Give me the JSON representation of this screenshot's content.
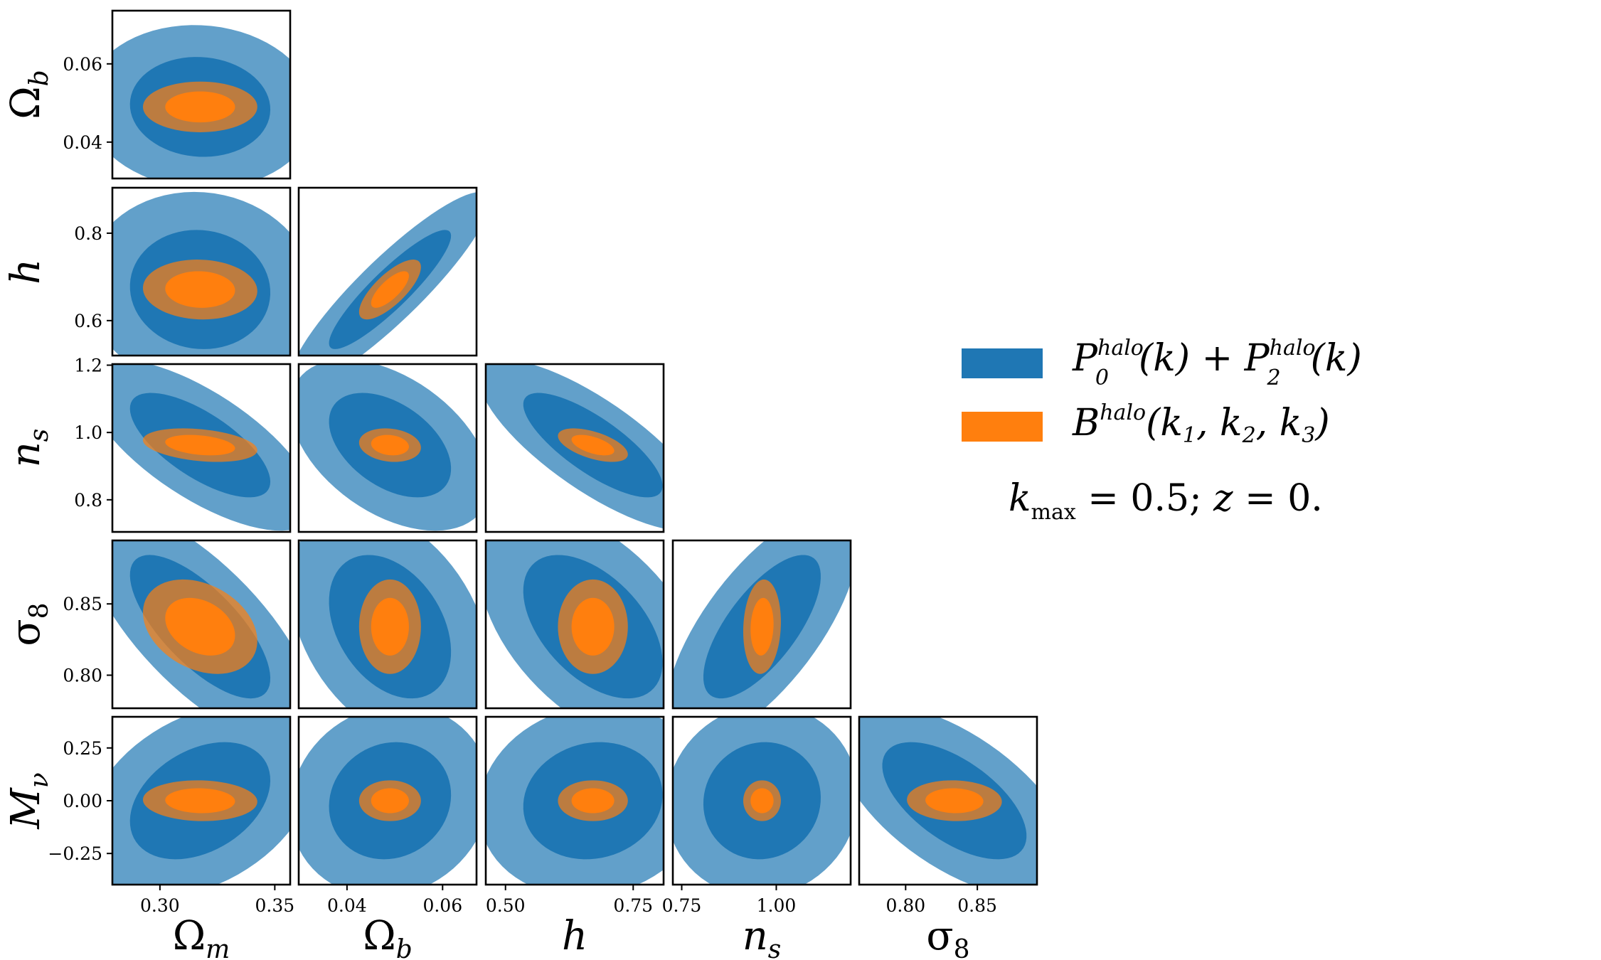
{
  "chart_data": {
    "type": "corner-plot",
    "title": "",
    "parameters": [
      {
        "key": "Om",
        "label": "Ωm",
        "base": "Ω",
        "sub": "m",
        "center": 0.3175,
        "ticks": [
          {
            "v": 0.3,
            "t": "0.30"
          },
          {
            "v": 0.35,
            "t": "0.35"
          }
        ]
      },
      {
        "key": "Ob",
        "label": "Ωb",
        "base": "Ω",
        "sub": "b",
        "center": 0.049,
        "ticks": [
          {
            "v": 0.04,
            "t": "0.04"
          },
          {
            "v": 0.06,
            "t": "0.06"
          }
        ]
      },
      {
        "key": "h",
        "label": "h",
        "base": "h",
        "sub": "",
        "center": 0.6711,
        "ticks": [
          {
            "v": 0.5,
            "t": "0.50"
          },
          {
            "v": 0.75,
            "t": "0.75"
          }
        ]
      },
      {
        "key": "ns",
        "label": "ns",
        "base": "n",
        "sub": "s",
        "center": 0.9624,
        "ticks": [
          {
            "v": 0.75,
            "t": "0.75"
          },
          {
            "v": 1.0,
            "t": "1.00"
          }
        ]
      },
      {
        "key": "s8",
        "label": "σ8",
        "base": "σ",
        "sub": "8",
        "center": 0.834,
        "ticks": [
          {
            "v": 0.8,
            "t": "0.80"
          },
          {
            "v": 0.85,
            "t": "0.85"
          }
        ]
      },
      {
        "key": "Mnu",
        "label": "Mν",
        "base": "M",
        "sub": "ν",
        "center": 0.0,
        "ticks": [
          {
            "v": -0.25,
            "t": "−0.25"
          },
          {
            "v": 0.0,
            "t": "0.00"
          },
          {
            "v": 0.25,
            "t": "0.25"
          }
        ]
      }
    ],
    "y_ticks": {
      "Ob": [
        {
          "v": 0.04,
          "t": "0.04"
        },
        {
          "v": 0.06,
          "t": "0.06"
        }
      ],
      "h": [
        {
          "v": 0.6,
          "t": "0.6"
        },
        {
          "v": 0.8,
          "t": "0.8"
        }
      ],
      "ns": [
        {
          "v": 0.8,
          "t": "0.8"
        },
        {
          "v": 1.0,
          "t": "1.0"
        },
        {
          "v": 1.2,
          "t": "1.2"
        }
      ],
      "s8": [
        {
          "v": 0.8,
          "t": "0.80"
        },
        {
          "v": 0.85,
          "t": "0.85"
        }
      ],
      "Mnu": [
        {
          "v": -0.25,
          "t": "−0.25"
        },
        {
          "v": 0.0,
          "t": "0.00"
        },
        {
          "v": 0.25,
          "t": "0.25"
        }
      ]
    },
    "axis_ranges": {
      "Om": [
        0.2793,
        0.3567
      ],
      "Ob": [
        0.0299,
        0.0671
      ],
      "h": [
        0.4614,
        0.8095
      ],
      "ns": [
        0.7265,
        1.1966
      ],
      "s8": [
        0.7676,
        0.8916
      ],
      "Mnu": [
        -0.3945,
        0.4011
      ]
    },
    "y_axis_ranges": {
      "Ob": [
        0.0307,
        0.0736
      ],
      "h": [
        0.52,
        0.904
      ],
      "ns": [
        0.7046,
        1.2032
      ],
      "s8": [
        0.7768,
        0.8945
      ],
      "Mnu": [
        -0.3976,
        0.3976
      ]
    },
    "series": [
      {
        "name": "P0halo(k) + P2halo(k)",
        "color": "#1f77b4",
        "sigma": {
          "Om": 0.0201,
          "Ob": 0.0084,
          "h": 0.0897,
          "ns": 0.1021,
          "s8": 0.0331,
          "Mnu": 0.1826
        }
      },
      {
        "name": "Bhalo(k1, k2, k3)",
        "color": "#ff7f0e",
        "sigma": {
          "Om": 0.01,
          "Ob": 0.0026,
          "h": 0.0275,
          "ns": 0.02,
          "s8": 0.0133,
          "Mnu": 0.0388
        }
      }
    ],
    "panels": [
      {
        "x": "Om",
        "y": "Ob",
        "rho_fisher_P": -0.05,
        "rho_fisher_B": 0.0
      },
      {
        "x": "Om",
        "y": "h",
        "rho_fisher_P": -0.05,
        "rho_fisher_B": -0.05
      },
      {
        "x": "Ob",
        "y": "h",
        "rho_fisher_P": 0.9,
        "rho_fisher_B": 0.75
      },
      {
        "x": "Om",
        "y": "ns",
        "rho_fisher_P": -0.7,
        "rho_fisher_B": -0.3
      },
      {
        "x": "Ob",
        "y": "ns",
        "rho_fisher_P": -0.45,
        "rho_fisher_B": -0.15
      },
      {
        "x": "h",
        "y": "ns",
        "rho_fisher_P": -0.78,
        "rho_fisher_B": -0.55
      },
      {
        "x": "Om",
        "y": "s8",
        "rho_fisher_P": -0.72,
        "rho_fisher_B": -0.3
      },
      {
        "x": "Ob",
        "y": "s8",
        "rho_fisher_P": -0.35,
        "rho_fisher_B": 0.0
      },
      {
        "x": "h",
        "y": "s8",
        "rho_fisher_P": -0.5,
        "rho_fisher_B": 0.0
      },
      {
        "x": "ns",
        "y": "s8",
        "rho_fisher_P": 0.7,
        "rho_fisher_B": 0.1
      },
      {
        "x": "Om",
        "y": "Mnu",
        "rho_fisher_P": 0.35,
        "rho_fisher_B": -0.05
      },
      {
        "x": "Ob",
        "y": "Mnu",
        "rho_fisher_P": 0.1,
        "rho_fisher_B": 0.0
      },
      {
        "x": "h",
        "y": "Mnu",
        "rho_fisher_P": 0.1,
        "rho_fisher_B": 0.0
      },
      {
        "x": "ns",
        "y": "Mnu",
        "rho_fisher_P": 0.05,
        "rho_fisher_B": 0.0
      },
      {
        "x": "s8",
        "y": "Mnu",
        "rho_fisher_P": -0.6,
        "rho_fisher_B": -0.05
      }
    ],
    "contour_levels": [
      "1-sigma (dark)",
      "2-sigma (light)"
    ],
    "legend": {
      "placement": "right",
      "entries": [
        {
          "color": "#1f77b4",
          "text": "P0halo(k) + P2halo(k)"
        },
        {
          "color": "#ff7f0e",
          "text": "Bhalo(k1, k2, k3)"
        }
      ],
      "note": "kmax = 0.5; z = 0."
    },
    "xlabel": "",
    "ylabel": ""
  }
}
